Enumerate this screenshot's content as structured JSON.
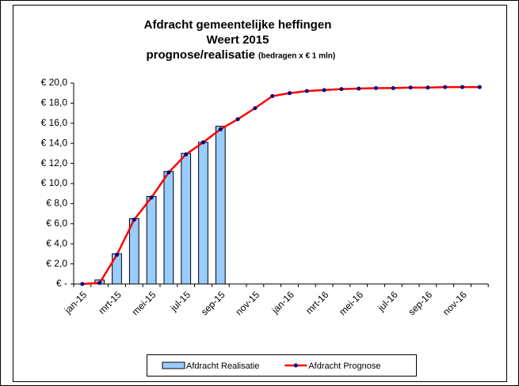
{
  "chart_data": {
    "type": "bar_line",
    "title": "Afdracht gemeentelijke heffingen",
    "subtitle": "Weert 2015",
    "title_line3": "prognose/realisatie",
    "title_note": "(bedragen x € 1 mln)",
    "categories": [
      "jan-15",
      null,
      "mrt-15",
      null,
      "mei-15",
      null,
      "jul-15",
      null,
      "sep-15",
      null,
      "nov-15",
      null,
      "jan-16",
      null,
      "mrt-16",
      null,
      "mei-16",
      null,
      "jul-16",
      null,
      "sep-16",
      null,
      "nov-16",
      null
    ],
    "series": [
      {
        "name": "Afdracht Realisatie",
        "type": "bar",
        "color": "#99ccff",
        "values": [
          null,
          0.4,
          3.0,
          6.5,
          8.7,
          11.2,
          13.0,
          14.1,
          15.7,
          null,
          null,
          null,
          null,
          null,
          null,
          null,
          null,
          null,
          null,
          null,
          null,
          null,
          null,
          null
        ]
      },
      {
        "name": "Afdracht Prognose",
        "type": "line",
        "color": "#ff0000",
        "marker_color": "#000080",
        "values": [
          0,
          0.1,
          2.9,
          6.4,
          8.6,
          11.1,
          12.9,
          14.1,
          15.4,
          16.4,
          17.5,
          18.7,
          19.0,
          19.2,
          19.3,
          19.4,
          19.45,
          19.5,
          19.5,
          19.55,
          19.55,
          19.6,
          19.6,
          19.6
        ]
      }
    ],
    "ylim": [
      0,
      20
    ],
    "yticks": [
      {
        "value": 0,
        "label": "€ -"
      },
      {
        "value": 2,
        "label": "€ 2,0"
      },
      {
        "value": 4,
        "label": "€ 4,0"
      },
      {
        "value": 6,
        "label": "€ 6,0"
      },
      {
        "value": 8,
        "label": "€ 8,0"
      },
      {
        "value": 10,
        "label": "€ 10,0"
      },
      {
        "value": 12,
        "label": "€ 12,0"
      },
      {
        "value": 14,
        "label": "€ 14,0"
      },
      {
        "value": 16,
        "label": "€ 16,0"
      },
      {
        "value": 18,
        "label": "€ 18,0"
      },
      {
        "value": 20,
        "label": "€ 20,0"
      }
    ],
    "grid": false,
    "legend": "bottom"
  }
}
